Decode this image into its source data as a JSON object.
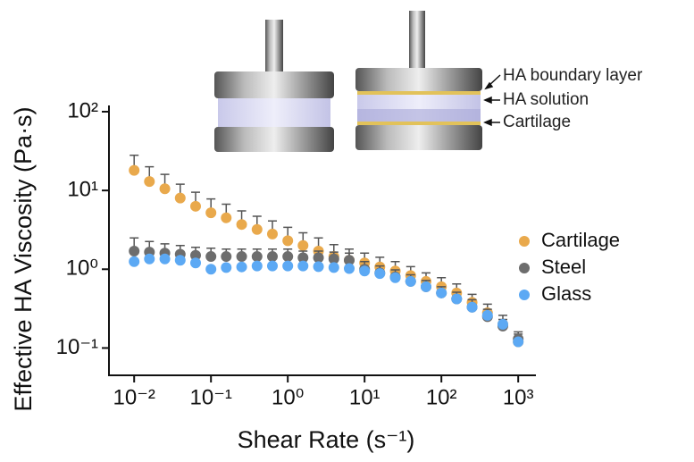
{
  "chart_data": {
    "type": "scatter",
    "x_label": "Shear Rate (s⁻¹)",
    "y_label": "Effective HA  Viscosity (Pa·s)",
    "annotations": [
      "HA boundary layer",
      "HA solution",
      "Cartilage"
    ],
    "log_x": true,
    "log_y": true,
    "legend": "right",
    "xlim": [
      0.0047,
      1700
    ],
    "ylim": [
      0.045,
      120
    ],
    "xticks": [
      {
        "value": 0.01,
        "label": "10⁻²"
      },
      {
        "value": 0.1,
        "label": "10⁻¹"
      },
      {
        "value": 1,
        "label": "10⁰"
      },
      {
        "value": 10,
        "label": "10¹"
      },
      {
        "value": 100,
        "label": "10²"
      },
      {
        "value": 1000,
        "label": "10³"
      }
    ],
    "yticks": [
      {
        "value": 0.1,
        "label": "10⁻¹"
      },
      {
        "value": 1,
        "label": "10⁰"
      },
      {
        "value": 10,
        "label": "10¹"
      },
      {
        "value": 100,
        "label": "10²"
      }
    ],
    "x": [
      0.01,
      0.0158,
      0.0251,
      0.0398,
      0.0631,
      0.1,
      0.158,
      0.251,
      0.398,
      0.631,
      1,
      1.58,
      2.51,
      3.98,
      6.31,
      10,
      15.8,
      25.1,
      39.8,
      63.1,
      100,
      158,
      251,
      398,
      631,
      1000
    ],
    "series": [
      {
        "name": "Cartilage",
        "color": "#e9a94c",
        "values": [
          18,
          13,
          10.5,
          8,
          6.3,
          5.2,
          4.5,
          3.7,
          3.2,
          2.8,
          2.3,
          2.0,
          1.7,
          1.45,
          1.3,
          1.2,
          1.07,
          0.95,
          0.83,
          0.7,
          0.6,
          0.5,
          0.38,
          0.28,
          0.2,
          0.12
        ],
        "errors": [
          10,
          7,
          5.5,
          4,
          3.2,
          2.6,
          2.2,
          1.8,
          1.5,
          1.3,
          1.1,
          0.9,
          0.8,
          0.6,
          0.5,
          0.4,
          0.35,
          0.3,
          0.25,
          0.2,
          0.18,
          0.15,
          0.1,
          0.08,
          0.06,
          0.03
        ]
      },
      {
        "name": "Steel",
        "color": "#6d6d6d",
        "values": [
          1.7,
          1.65,
          1.6,
          1.55,
          1.5,
          1.45,
          1.45,
          1.45,
          1.45,
          1.45,
          1.45,
          1.4,
          1.4,
          1.35,
          1.3,
          1.0,
          0.9,
          0.8,
          0.7,
          0.6,
          0.5,
          0.42,
          0.33,
          0.25,
          0.19,
          0.13
        ],
        "errors": [
          0.8,
          0.6,
          0.5,
          0.45,
          0.4,
          0.4,
          0.35,
          0.35,
          0.35,
          0.35,
          0.35,
          0.3,
          0.3,
          0.3,
          0.3,
          0.25,
          0.2,
          0.18,
          0.15,
          0.12,
          0.1,
          0.09,
          0.08,
          0.06,
          0.04,
          0.03
        ]
      },
      {
        "name": "Glass",
        "color": "#5ca9f4",
        "values": [
          1.25,
          1.35,
          1.35,
          1.3,
          1.2,
          1.0,
          1.05,
          1.07,
          1.1,
          1.1,
          1.1,
          1.1,
          1.08,
          1.05,
          1.02,
          0.95,
          0.88,
          0.78,
          0.7,
          0.6,
          0.5,
          0.42,
          0.33,
          0.26,
          0.2,
          0.12
        ]
      }
    ]
  }
}
